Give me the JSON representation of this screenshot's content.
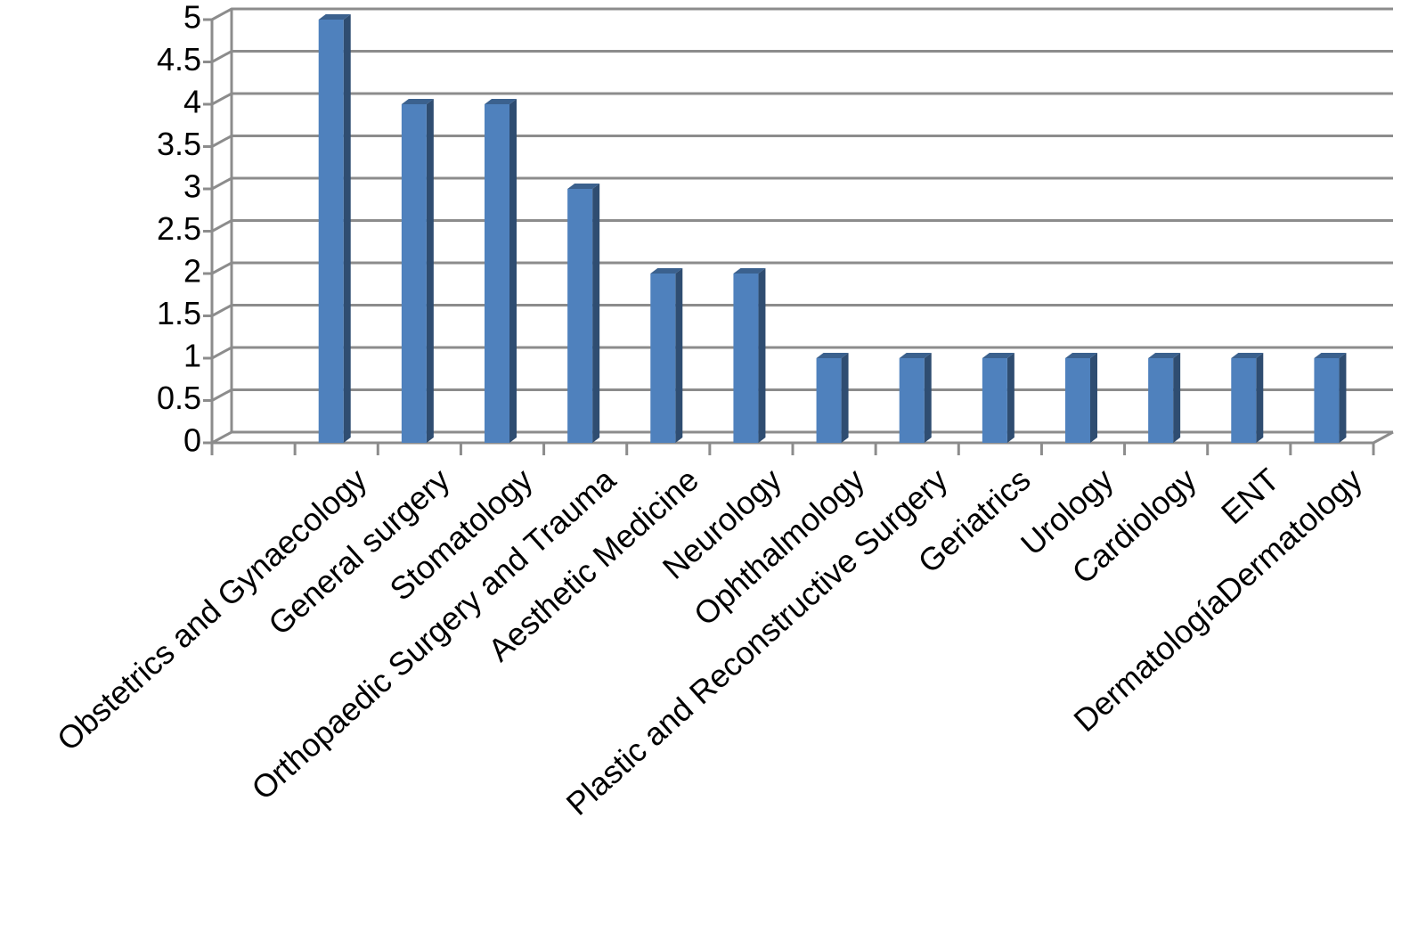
{
  "chart_data": {
    "type": "bar3d",
    "categories": [
      null,
      "Obstetrics and Gynaecology",
      "General surgery",
      "Stomatology",
      "Orthopaedic Surgery and Trauma",
      "Aesthetic Medicine",
      "Neurology",
      "Ophthalmology",
      "Plastic and Reconstructive Surgery",
      "Geriatrics",
      "Urology",
      "Cardiology",
      "ENT",
      "DermatologíaDermatology"
    ],
    "values": [
      null,
      5,
      4,
      4,
      3,
      2,
      2,
      1,
      1,
      1,
      1,
      1,
      1,
      1
    ],
    "color": "#4f81bd",
    "ylim": [
      0,
      5
    ],
    "yticks": [
      0,
      0.5,
      1,
      1.5,
      2,
      2.5,
      3,
      3.5,
      4,
      4.5,
      5
    ],
    "grid": true
  }
}
